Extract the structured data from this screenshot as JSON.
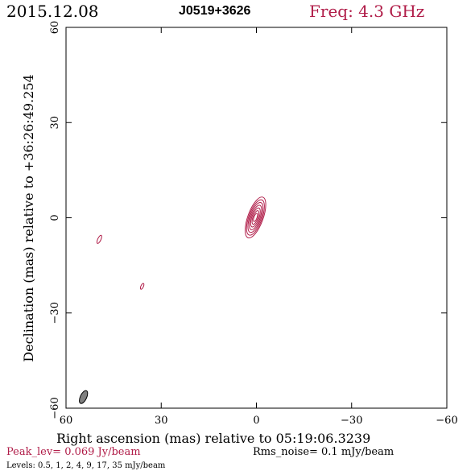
{
  "header": {
    "date": "2015.12.08",
    "source": "J0519+3626",
    "freq": "Freq: 4.3 GHz"
  },
  "footer": {
    "peak": "Peak_lev=  0.069 Jy/beam",
    "rms": "Rms_noise=  0.1 mJy/beam",
    "levels": "Levels: 0.5,   1,   2,   4,   9,   17,   35 mJy/beam"
  },
  "colors": {
    "contour": "#b01c48",
    "beam": "#808080",
    "frame": "#000000"
  },
  "chart_data": {
    "type": "contour",
    "xlabel": "Right ascension (mas) relative to 05:19:06.3239",
    "ylabel": "Declination (mas) relative to +36:26:49.254",
    "xlim": [
      60,
      -60
    ],
    "ylim": [
      -60,
      60
    ],
    "x_ticks": [
      60,
      30,
      0,
      -30,
      -60
    ],
    "y_ticks": [
      -60,
      -30,
      0,
      30,
      60
    ],
    "x_tick_labels": [
      "60",
      "30",
      "0",
      "−30",
      "−60"
    ],
    "y_tick_labels": [
      "−60",
      "−30",
      "0",
      "30",
      "60"
    ],
    "levels_mJy": [
      0.5,
      1,
      2,
      4,
      9,
      17,
      35
    ],
    "peak_Jy": 0.069,
    "rms_mJy": 0.1,
    "components": [
      {
        "x": 0.3,
        "y": 0.1,
        "major": 6.8,
        "minor": 2.4,
        "pa": 20,
        "levels_shown": 7
      },
      {
        "x": 49.5,
        "y": -6.8,
        "major": 1.4,
        "minor": 0.5,
        "pa": 25,
        "levels_shown": 1
      },
      {
        "x": 36.0,
        "y": -21.6,
        "major": 1.0,
        "minor": 0.4,
        "pa": 25,
        "levels_shown": 1
      }
    ],
    "beam": {
      "x": 54.5,
      "y": -56.5,
      "major": 2.2,
      "minor": 1.0,
      "pa": 25
    }
  }
}
